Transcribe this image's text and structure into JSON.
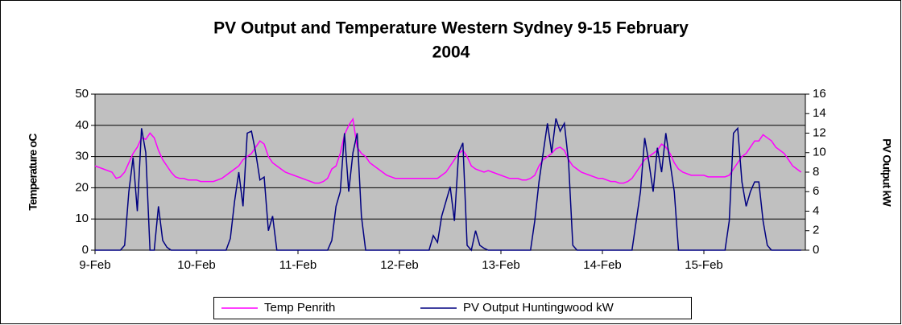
{
  "chart_data": {
    "type": "line",
    "title": "PV Output and Temperature Western Sydney 9-15 February",
    "title_line2": "2004",
    "ylabel": "Temperature oC",
    "y2label": "PV Output kW",
    "xlim": [
      0,
      168
    ],
    "xticks": [
      {
        "value": 0,
        "label": "9-Feb"
      },
      {
        "value": 24,
        "label": "10-Feb"
      },
      {
        "value": 48,
        "label": "11-Feb"
      },
      {
        "value": 72,
        "label": "12-Feb"
      },
      {
        "value": 96,
        "label": "13-Feb"
      },
      {
        "value": 120,
        "label": "14-Feb"
      },
      {
        "value": 144,
        "label": "15-Feb"
      }
    ],
    "ylim": [
      0,
      50
    ],
    "yticks": [
      0,
      10,
      20,
      30,
      40,
      50
    ],
    "y2lim": [
      0,
      16
    ],
    "y2ticks": [
      0,
      2,
      4,
      6,
      8,
      10,
      12,
      14,
      16
    ],
    "grid": true,
    "plot_background": "#c0c0c0",
    "legend": "bottom",
    "x": [
      0,
      1,
      2,
      3,
      4,
      5,
      6,
      7,
      8,
      9,
      10,
      11,
      12,
      13,
      14,
      15,
      16,
      17,
      18,
      19,
      20,
      21,
      22,
      23,
      24,
      25,
      26,
      27,
      28,
      29,
      30,
      31,
      32,
      33,
      34,
      35,
      36,
      37,
      38,
      39,
      40,
      41,
      42,
      43,
      44,
      45,
      46,
      47,
      48,
      49,
      50,
      51,
      52,
      53,
      54,
      55,
      56,
      57,
      58,
      59,
      60,
      61,
      62,
      63,
      64,
      65,
      66,
      67,
      68,
      69,
      70,
      71,
      72,
      73,
      74,
      75,
      76,
      77,
      78,
      79,
      80,
      81,
      82,
      83,
      84,
      85,
      86,
      87,
      88,
      89,
      90,
      91,
      92,
      93,
      94,
      95,
      96,
      97,
      98,
      99,
      100,
      101,
      102,
      103,
      104,
      105,
      106,
      107,
      108,
      109,
      110,
      111,
      112,
      113,
      114,
      115,
      116,
      117,
      118,
      119,
      120,
      121,
      122,
      123,
      124,
      125,
      126,
      127,
      128,
      129,
      130,
      131,
      132,
      133,
      134,
      135,
      136,
      137,
      138,
      139,
      140,
      141,
      142,
      143,
      144,
      145,
      146,
      147,
      148,
      149,
      150,
      151,
      152,
      153,
      154,
      155,
      156,
      157,
      158,
      159,
      160,
      161,
      162,
      163,
      164,
      165,
      166,
      167
    ],
    "series": [
      {
        "name": "Temp Penrith",
        "color": "#ff00ff",
        "values": [
          27,
          26.5,
          26,
          25.5,
          25,
          23,
          23.5,
          25,
          28,
          31,
          33,
          36,
          35.5,
          37.5,
          36,
          32,
          29,
          27,
          25,
          23.5,
          23,
          23,
          22.5,
          22.5,
          22.5,
          22,
          22,
          22,
          22,
          22.5,
          23,
          24,
          25,
          26,
          27,
          29,
          30,
          31,
          33,
          35,
          34,
          30,
          28,
          27,
          26,
          25,
          24.5,
          24,
          23.5,
          23,
          22.5,
          22,
          21.5,
          21.5,
          22,
          23,
          26,
          27,
          31,
          37,
          40,
          42,
          33,
          31,
          30,
          28,
          27,
          26,
          25,
          24,
          23.5,
          23,
          23,
          23,
          23,
          23,
          23,
          23,
          23,
          23,
          23,
          23,
          24,
          25,
          27,
          29,
          31,
          32,
          30,
          27,
          26,
          25.5,
          25,
          25.5,
          25,
          24.5,
          24,
          23.5,
          23,
          23,
          23,
          22.5,
          22.5,
          23,
          24,
          27,
          29,
          30,
          31,
          32.5,
          33,
          32,
          29,
          27,
          26,
          25,
          24.5,
          24,
          23.5,
          23,
          23,
          22.5,
          22,
          22,
          21.5,
          21.5,
          22,
          23,
          25,
          27,
          29,
          30,
          31,
          32,
          34,
          33,
          31,
          28,
          26,
          25,
          24.5,
          24,
          24,
          24,
          24,
          23.5,
          23.5,
          23.5,
          23.5,
          23.5,
          24,
          26,
          28,
          30,
          31,
          33,
          35,
          35,
          37,
          36,
          35,
          33,
          32,
          31,
          29,
          27,
          26,
          25
        ]
      },
      {
        "name": "PV Output Huntingwood kW",
        "color": "#000080",
        "axis": "y2",
        "values": [
          0,
          0,
          0,
          0,
          0,
          0,
          0,
          0.5,
          6,
          9.5,
          4,
          12.5,
          10,
          0,
          0,
          4.5,
          1,
          0.3,
          0,
          0,
          0,
          0,
          0,
          0,
          0,
          0,
          0,
          0,
          0,
          0,
          0,
          0,
          1.2,
          5,
          8,
          4.5,
          12,
          12.2,
          10,
          7.2,
          7.5,
          2,
          3.5,
          0,
          0,
          0,
          0,
          0,
          0,
          0,
          0,
          0,
          0,
          0,
          0,
          0,
          1,
          4.5,
          6,
          12,
          6,
          10,
          12,
          3.5,
          0,
          0,
          0,
          0,
          0,
          0,
          0,
          0,
          0,
          0,
          0,
          0,
          0,
          0,
          0,
          0,
          1.5,
          0.8,
          3.5,
          5,
          6.5,
          3,
          10,
          11,
          0.5,
          0,
          2,
          0.5,
          0.2,
          0,
          0,
          0,
          0,
          0,
          0,
          0,
          0,
          0,
          0,
          0,
          3,
          7,
          10,
          13,
          10,
          13.5,
          12.2,
          13,
          9,
          0.5,
          0,
          0,
          0,
          0,
          0,
          0,
          0,
          0,
          0,
          0,
          0,
          0,
          0,
          0,
          3,
          6,
          11.5,
          9,
          6,
          10.5,
          8,
          12,
          9,
          6,
          0,
          0,
          0,
          0,
          0,
          0,
          0,
          0,
          0,
          0,
          0,
          0,
          3,
          12,
          12.5,
          7,
          4.5,
          6,
          7,
          7,
          3,
          0.5,
          0,
          0,
          0,
          0,
          0,
          0,
          0,
          0
        ]
      }
    ]
  }
}
